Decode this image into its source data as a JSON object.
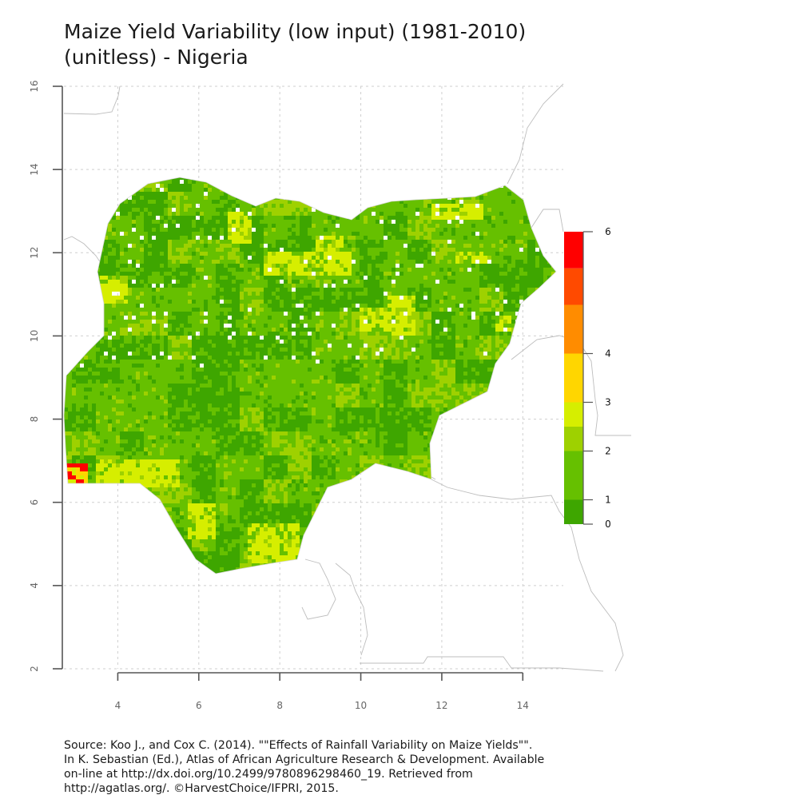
{
  "title": {
    "line1": "Maize Yield Variability (low input) (1981-2010)",
    "line2": "(unitless) - Nigeria"
  },
  "map": {
    "x_ticks": [
      4,
      6,
      8,
      10,
      12,
      14
    ],
    "y_ticks": [
      2,
      4,
      6,
      8,
      10,
      12,
      14,
      16
    ],
    "x_range": [
      2.67,
      15.0
    ],
    "y_range": [
      2.0,
      16.0
    ],
    "grid": true,
    "region": "Nigeria"
  },
  "legend": {
    "placement": "right",
    "range": [
      0,
      6
    ],
    "labels": [
      "0",
      "1",
      "2",
      "3",
      "4",
      "6"
    ],
    "classes": [
      {
        "color": "#3ea600",
        "from": 0,
        "to": 0.5
      },
      {
        "color": "#66c000",
        "from": 0.5,
        "to": 1.5
      },
      {
        "color": "#9ed100",
        "from": 1.5,
        "to": 2.0
      },
      {
        "color": "#d6ee00",
        "from": 2.0,
        "to": 2.5
      },
      {
        "color": "#ffd600",
        "from": 2.5,
        "to": 3.5
      },
      {
        "color": "#ff8c00",
        "from": 3.5,
        "to": 4.5
      },
      {
        "color": "#ff4a00",
        "from": 4.5,
        "to": 5.25
      },
      {
        "color": "#ff0000",
        "from": 5.25,
        "to": 6.0
      }
    ]
  },
  "source": {
    "line1": "Source: Koo J., and Cox C. (2014). \"\"Effects of Rainfall Variability on Maize Yields\"\".",
    "line2": "In K. Sebastian (Ed.), Atlas of African Agriculture Research & Development. Available",
    "line3": "on-line at http://dx.doi.org/10.2499/9780896298460_19. Retrieved from",
    "line4": "http://agatlas.org/. ©HarvestChoice/IFPRI, 2015."
  }
}
